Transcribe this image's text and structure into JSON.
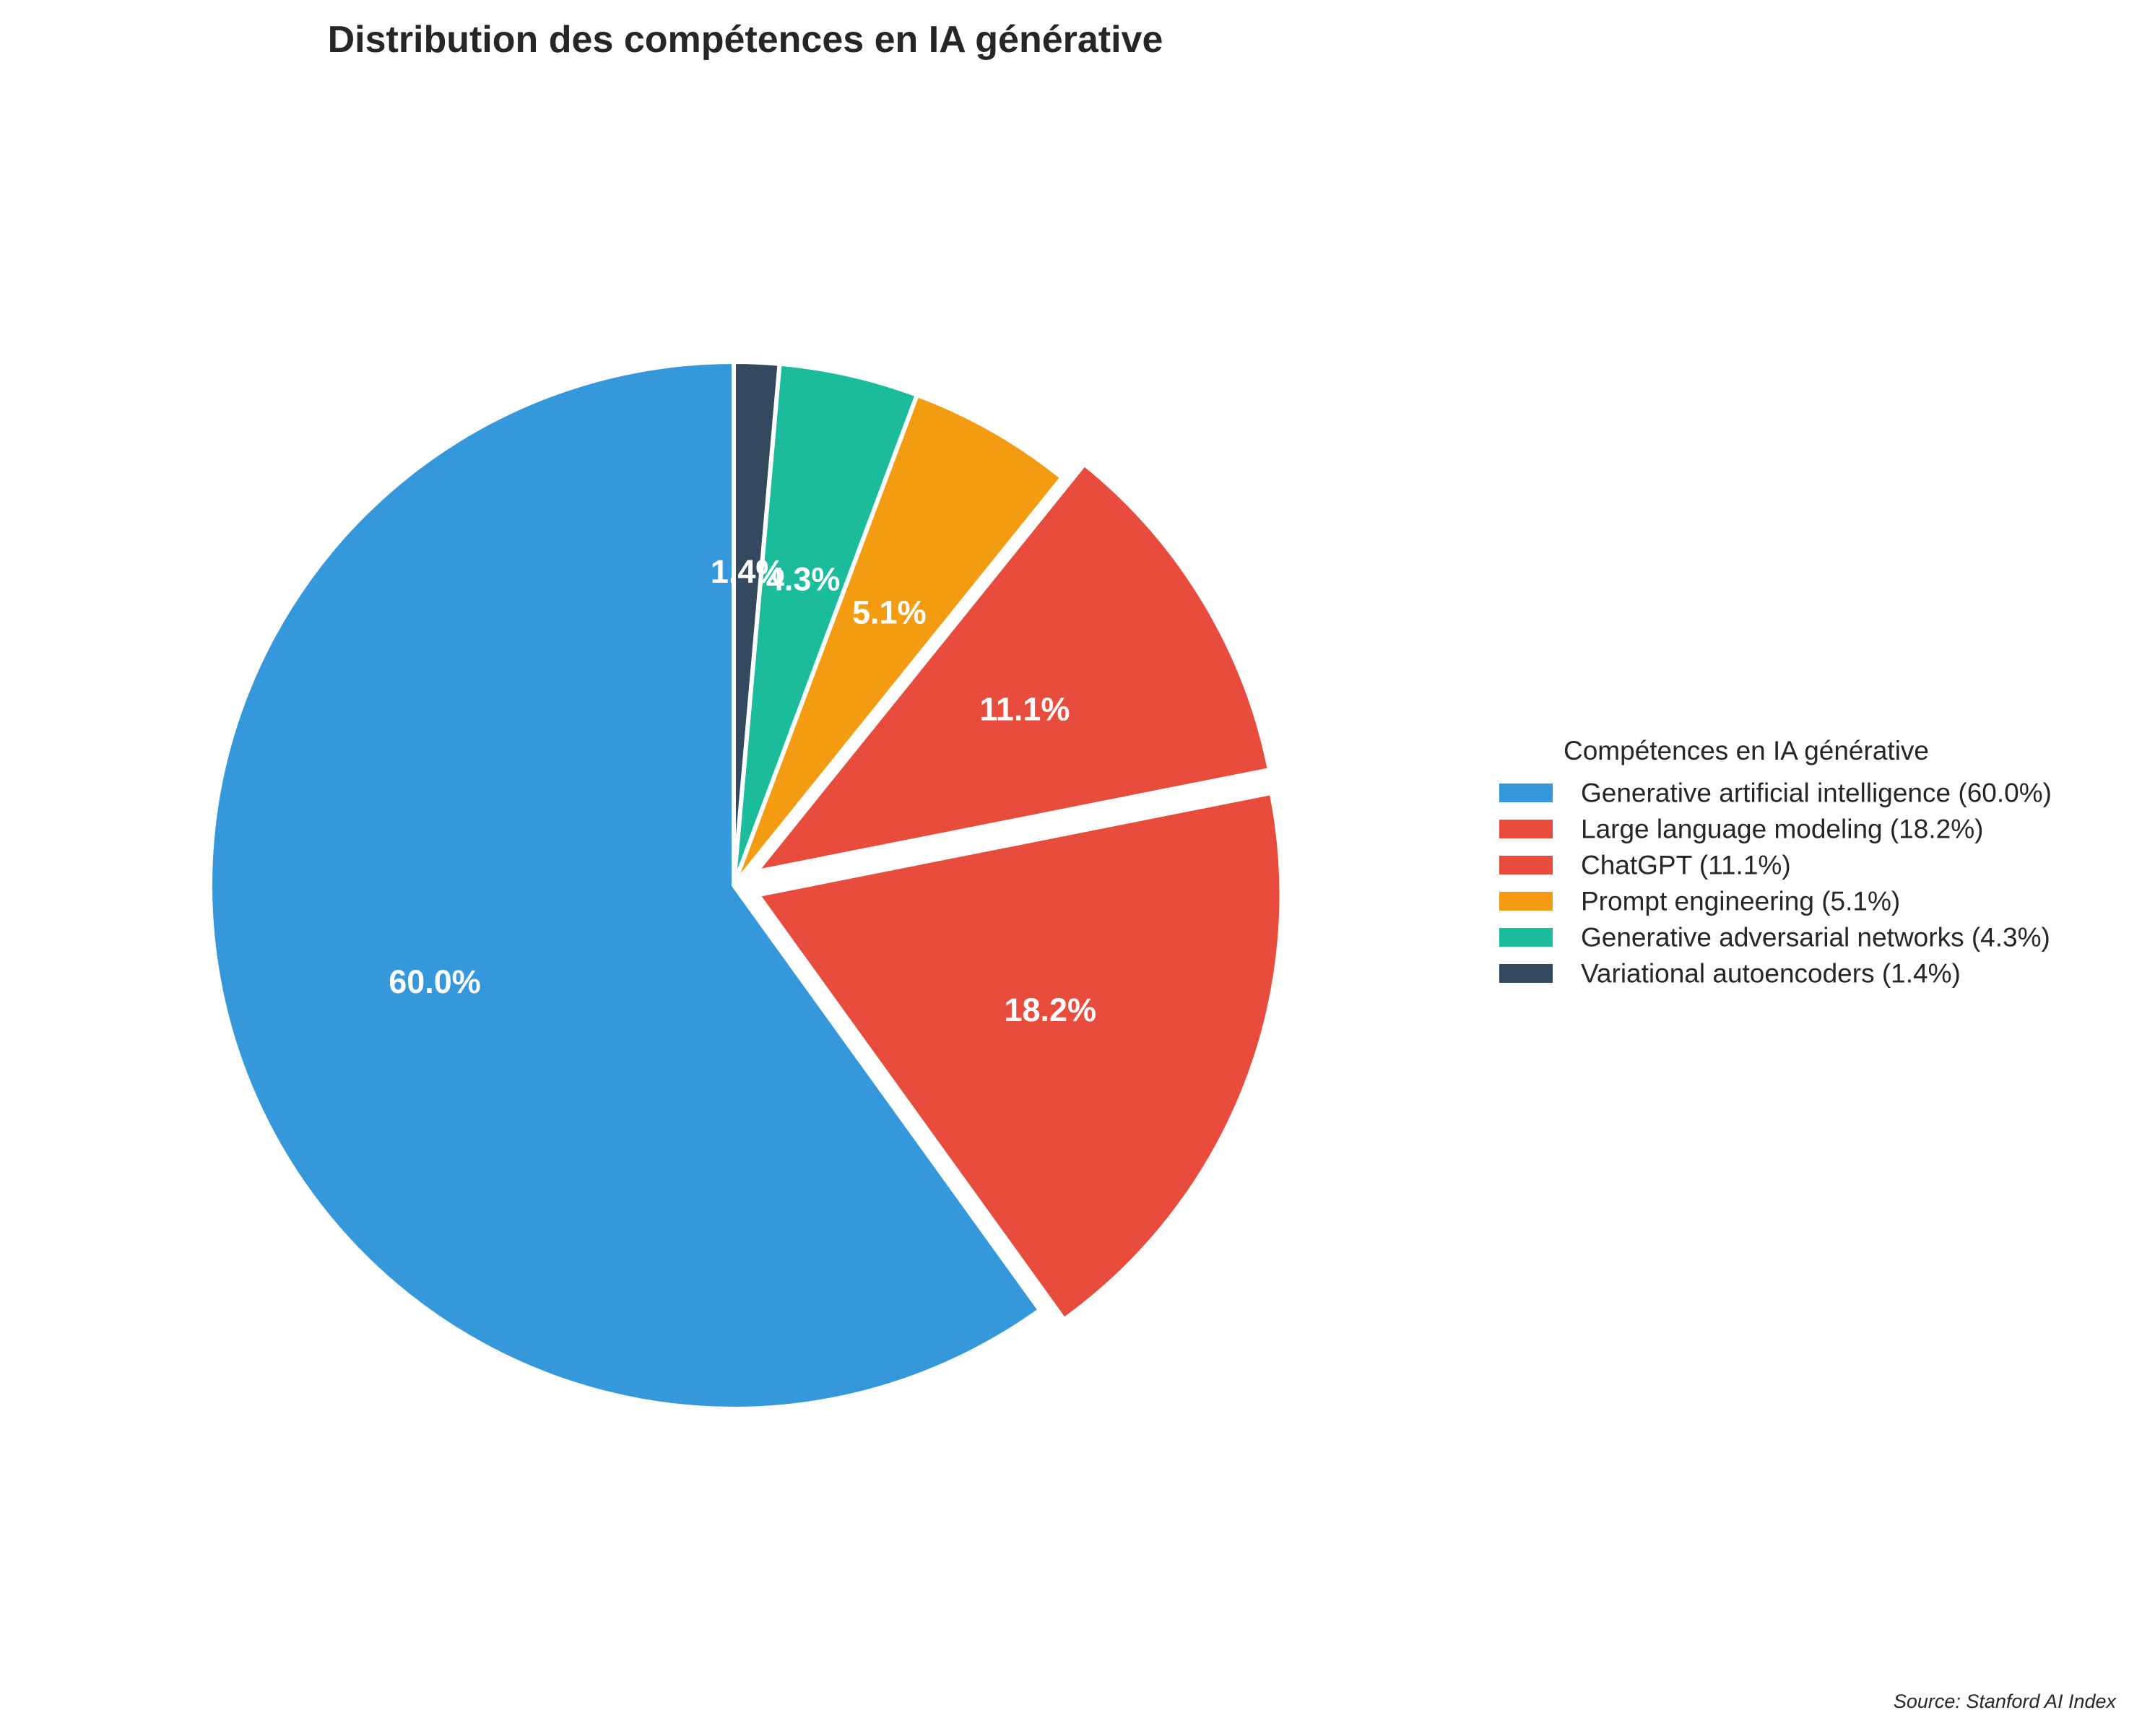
{
  "chart_data": {
    "type": "pie",
    "title": "Distribution des compétences en IA générative",
    "legend_title": "Compétences en IA générative",
    "legend_position": "right",
    "source_note": "Source: Stanford AI Index",
    "start_angle_deg": 90,
    "direction": "clockwise",
    "slices": [
      {
        "label": "Variational autoencoders",
        "value": 1.4,
        "pct_label": "1.4%",
        "legend": "Variational autoencoders (1.4%)",
        "color": "#34495e",
        "exploded": false
      },
      {
        "label": "Generative adversarial networks",
        "value": 4.3,
        "pct_label": "4.3%",
        "legend": "Generative adversarial networks (4.3%)",
        "color": "#1abc9c",
        "exploded": false
      },
      {
        "label": "Prompt engineering",
        "value": 5.1,
        "pct_label": "5.1%",
        "legend": "Prompt engineering (5.1%)",
        "color": "#f39c12",
        "exploded": false
      },
      {
        "label": "ChatGPT",
        "value": 11.1,
        "pct_label": "11.1%",
        "legend": "ChatGPT (11.1%)",
        "color": "#e74c3c",
        "exploded": true
      },
      {
        "label": "Large language modeling",
        "value": 18.2,
        "pct_label": "18.2%",
        "legend": "Large language modeling (18.2%)",
        "color": "#e74c3c",
        "exploded": true
      },
      {
        "label": "Generative artificial intelligence",
        "value": 60.0,
        "pct_label": "60.0%",
        "legend": "Generative artificial intelligence (60.0%)",
        "color": "#3498db",
        "exploded": false
      }
    ],
    "legend_order": [
      "Generative artificial intelligence",
      "Large language modeling",
      "ChatGPT",
      "Prompt engineering",
      "Generative adversarial networks",
      "Variational autoencoders"
    ]
  }
}
